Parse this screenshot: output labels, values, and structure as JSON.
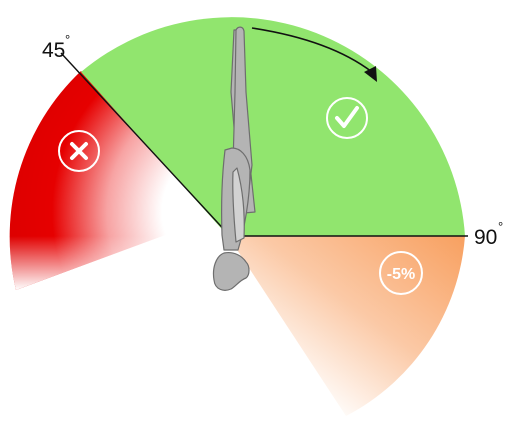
{
  "labels": {
    "angle_45": "45",
    "angle_90": "90",
    "degree_symbol": "°"
  },
  "zones": {
    "valid": {
      "icon": "checkmark-icon",
      "color": "#91e56e"
    },
    "invalid": {
      "icon": "x-icon",
      "color": "#e00000"
    },
    "penalty": {
      "text": "-5%",
      "color": "#f9a060"
    }
  },
  "colors": {
    "figure_fill": "#b4b4b4",
    "figure_stroke": "#6e6e6e",
    "line": "#111111",
    "badge_stroke": "#ffffff"
  }
}
